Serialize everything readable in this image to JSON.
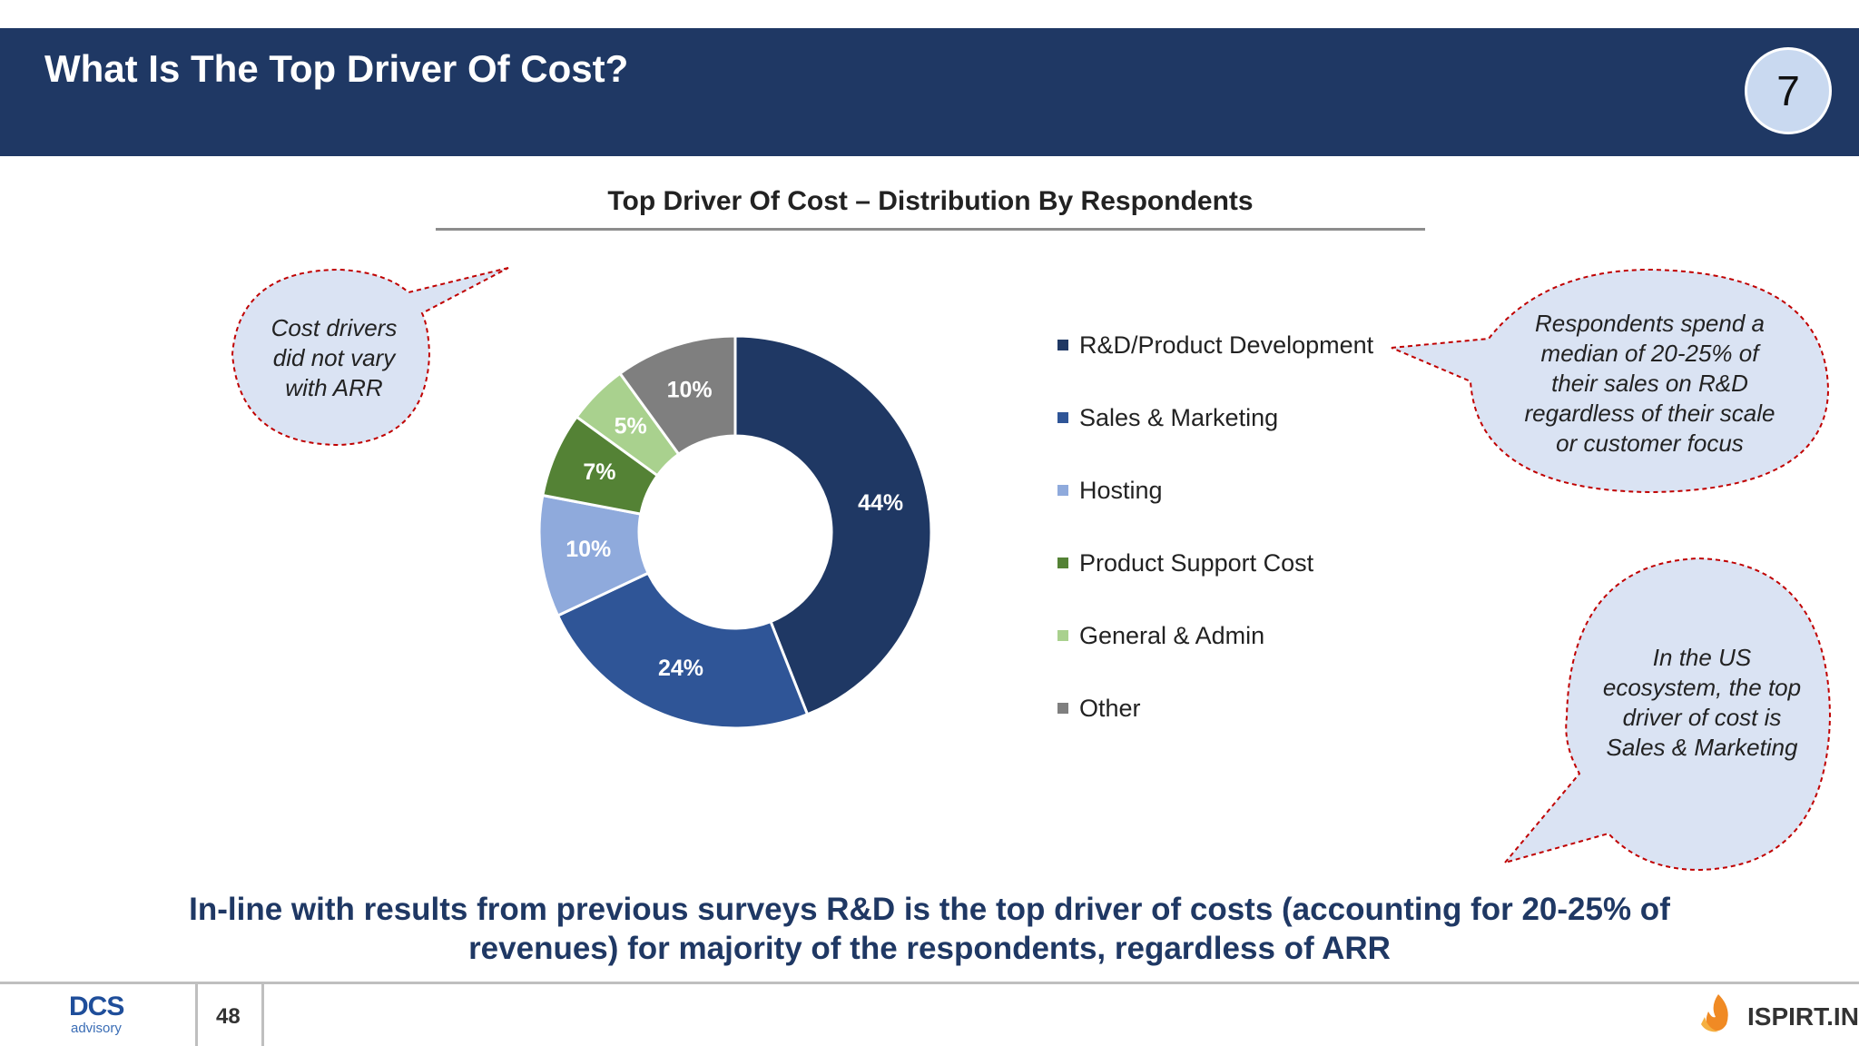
{
  "header": {
    "title": "What Is The Top Driver Of Cost?",
    "page_badge": "7"
  },
  "chart_data": {
    "type": "pie",
    "title": "Top Driver Of Cost – Distribution By Respondents",
    "labels": [
      "R&D/Product Development",
      "Sales & Marketing",
      "Hosting",
      "Product Support Cost",
      "General & Admin",
      "Other"
    ],
    "values": [
      44,
      24,
      10,
      7,
      5,
      10
    ],
    "data_labels": [
      "44%",
      "24%",
      "10%",
      "7%",
      "5%",
      "10%"
    ],
    "colors": [
      "#1f3864",
      "#2f5597",
      "#8faadc",
      "#548235",
      "#a9d18e",
      "#7f7f7f"
    ],
    "label_colors": [
      "#ffffff",
      "#ffffff",
      "#ffffff",
      "#ffffff",
      "#ffffff",
      "#ffffff"
    ],
    "legend": "right",
    "donut": true
  },
  "callouts": {
    "left": "Cost drivers did not vary with ARR",
    "right_top": "Respondents spend a median of 20-25% of their sales on R&D regardless of their scale or customer focus",
    "right_bottom": "In the US ecosystem, the top driver of cost is Sales & Marketing",
    "fill_color": "#dae3f3",
    "border_color": "#c00000"
  },
  "conclusion": "In-line with results from previous surveys R&D is the top driver of costs (accounting for 20-25% of revenues) for majority of the respondents, regardless of ARR",
  "footer": {
    "logo": "DCS",
    "logo_sub": "advisory",
    "slide_number": "48",
    "brand": "ISPIRT.IN"
  }
}
